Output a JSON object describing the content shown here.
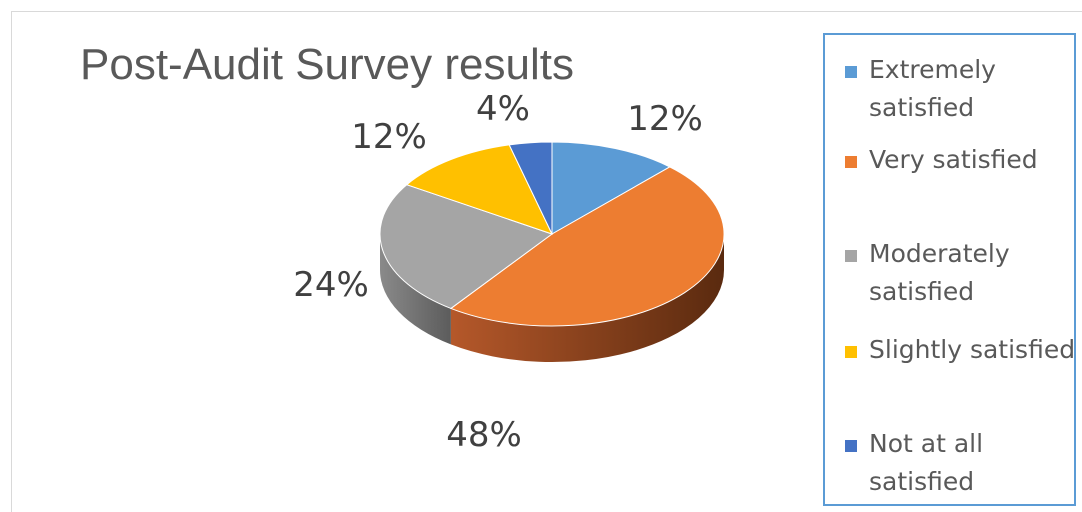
{
  "chart_data": {
    "type": "pie",
    "title": "Post-Audit Survey results",
    "categories": [
      "Extremely satisfied",
      "Very satisfied",
      "Moderately satisfied",
      "Slightly satisfied",
      "Not at all satisfied"
    ],
    "values": [
      12,
      48,
      24,
      12,
      4
    ],
    "data_labels": [
      "12%",
      "48%",
      "24%",
      "12%",
      "4%"
    ],
    "colors": [
      "#5b9bd5",
      "#ed7d31",
      "#a5a5a5",
      "#ffc000",
      "#4472c4"
    ],
    "style": "3d",
    "legend_position": "right"
  }
}
